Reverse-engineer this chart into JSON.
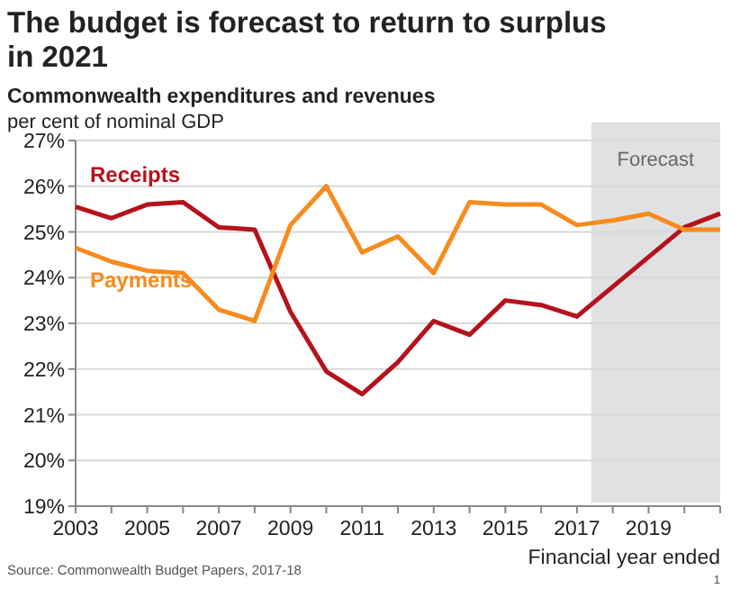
{
  "chart_data": {
    "type": "line",
    "title": "The budget is forecast to return to surplus in 2021",
    "subtitle": "Commonwealth expenditures and revenues",
    "ylabel": "per cent of nominal GDP",
    "xlabel": "Financial year ended",
    "x": [
      2003,
      2004,
      2005,
      2006,
      2007,
      2008,
      2009,
      2010,
      2011,
      2012,
      2013,
      2014,
      2015,
      2016,
      2017,
      2018,
      2019,
      2020,
      2021
    ],
    "series": [
      {
        "name": "Receipts",
        "color": "#b5121b",
        "values": [
          25.55,
          25.3,
          25.6,
          25.65,
          25.1,
          25.05,
          23.25,
          21.95,
          21.45,
          22.15,
          23.05,
          22.75,
          23.5,
          23.4,
          23.15,
          23.8,
          24.45,
          25.1,
          25.4
        ]
      },
      {
        "name": "Payments",
        "color": "#f68b1f",
        "values": [
          24.65,
          24.35,
          24.15,
          24.1,
          23.3,
          23.05,
          25.15,
          26.0,
          24.55,
          24.9,
          24.1,
          25.65,
          25.6,
          25.6,
          25.15,
          25.25,
          25.4,
          25.05,
          25.05
        ]
      }
    ],
    "xlim": [
      2003,
      2021
    ],
    "xticks": [
      2003,
      {
        "value": 2004,
        "label": null
      },
      2005,
      {
        "value": 2006,
        "label": null
      },
      2007,
      {
        "value": 2008,
        "label": null
      },
      2009,
      {
        "value": 2010,
        "label": null
      },
      2011,
      {
        "value": 2012,
        "label": null
      },
      2013,
      {
        "value": 2014,
        "label": null
      },
      2015,
      {
        "value": 2016,
        "label": null
      },
      2017,
      {
        "value": 2018,
        "label": null
      },
      2019,
      {
        "value": 2020,
        "label": null
      },
      {
        "value": 2021,
        "label": null
      }
    ],
    "ylim": [
      19,
      27
    ],
    "yticks": [
      {
        "value": 19,
        "label": "19%"
      },
      {
        "value": 20,
        "label": "20%"
      },
      {
        "value": 21,
        "label": "21%"
      },
      {
        "value": 22,
        "label": "22%"
      },
      {
        "value": 23,
        "label": "23%"
      },
      {
        "value": 24,
        "label": "24%"
      },
      {
        "value": 25,
        "label": "25%"
      },
      {
        "value": 26,
        "label": "26%"
      },
      {
        "value": 27,
        "label": "27%"
      }
    ],
    "grid": "y",
    "marker": "none",
    "line_style": "solid",
    "bands": [
      {
        "axis": "x",
        "from": 2017.4,
        "to": 2021,
        "label": "Forecast",
        "color": "#e0e1e3"
      }
    ],
    "annotations": [
      "Source: Commonwealth Budget Papers, 2017-18",
      "1"
    ]
  }
}
